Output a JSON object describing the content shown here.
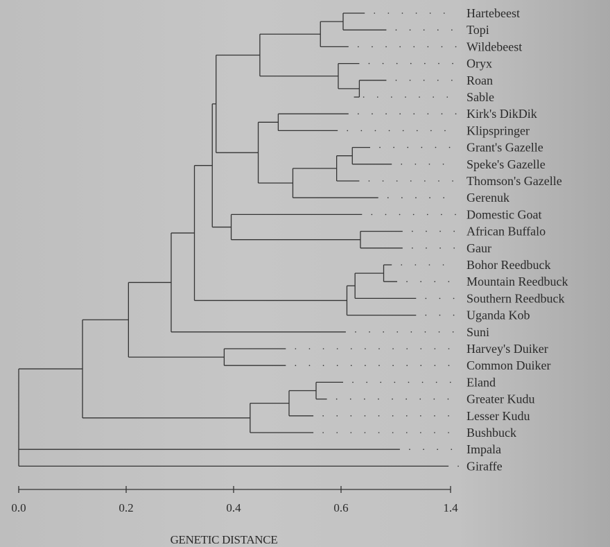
{
  "figure": {
    "axis_label": "GENETIC DISTANCE",
    "axis_ticks": [
      "0.0",
      "0.2",
      "0.4",
      "0.6",
      "1.4"
    ]
  },
  "taxa": [
    "Hartebeest",
    "Topi",
    "Wildebeest",
    "Oryx",
    "Roan",
    "Sable",
    "Kirk's DikDik",
    "Klipspringer",
    "Grant's Gazelle",
    "Speke's Gazelle",
    "Thomson's Gazelle",
    "Gerenuk",
    "Domestic Goat",
    "African Buffalo",
    "Gaur",
    "Bohor Reedbuck",
    "Mountain Reedbuck",
    "Southern Reedbuck",
    "Uganda Kob",
    "Suni",
    "Harvey's Duiker",
    "Common Duiker",
    "Eland",
    "Greater Kudu",
    "Lesser Kudu",
    "Bushbuck",
    "Impala",
    "Giraffe"
  ],
  "tree": {
    "children": [
      {
        "h": 0.118,
        "children": [
          {
            "h": 0.203,
            "children": [
              {
                "h": 0.282,
                "children": [
                  {
                    "h": 0.325,
                    "children": [
                      {
                        "h": 0.358,
                        "children": [
                          {
                            "h": 0.365,
                            "children": [
                              {
                                "h": 0.446,
                                "children": [
                                  {
                                    "h": 0.558,
                                    "children": [
                                      {
                                        "h": 0.6,
                                        "children": [
                                          {
                                            "leaf": "Hartebeest",
                                            "len": 0.64
                                          },
                                          {
                                            "leaf": "Topi",
                                            "len": 0.68
                                          }
                                        ]
                                      },
                                      {
                                        "leaf": "Wildebeest",
                                        "len": 0.61
                                      }
                                    ]
                                  },
                                  {
                                    "h": 0.591,
                                    "children": [
                                      {
                                        "leaf": "Oryx",
                                        "len": 0.63
                                      },
                                      {
                                        "h": 0.63,
                                        "children": [
                                          {
                                            "leaf": "Roan",
                                            "len": 0.68
                                          },
                                          {
                                            "leaf": "Sable",
                                            "len": 0.62
                                          }
                                        ]
                                      }
                                    ]
                                  }
                                ]
                              },
                              {
                                "h": 0.443,
                                "children": [
                                  {
                                    "h": 0.48,
                                    "children": [
                                      {
                                        "leaf": "Kirk's DikDik",
                                        "len": 0.61
                                      },
                                      {
                                        "leaf": "Klipspringer",
                                        "len": 0.59
                                      }
                                    ]
                                  },
                                  {
                                    "h": 0.507,
                                    "children": [
                                      {
                                        "h": 0.588,
                                        "children": [
                                          {
                                            "h": 0.617,
                                            "children": [
                                              {
                                                "leaf": "Grant's Gazelle",
                                                "len": 0.65
                                              },
                                              {
                                                "leaf": "Speke's Gazelle",
                                                "len": 0.69
                                              }
                                            ]
                                          },
                                          {
                                            "leaf": "Thomson's Gazelle",
                                            "len": 0.63
                                          }
                                        ]
                                      },
                                      {
                                        "leaf": "Gerenuk",
                                        "len": 0.665
                                      }
                                    ]
                                  }
                                ]
                              }
                            ]
                          },
                          {
                            "h": 0.393,
                            "children": [
                              {
                                "leaf": "Domestic Goat",
                                "len": 0.635
                              },
                              {
                                "h": 0.632,
                                "children": [
                                  {
                                    "leaf": "African Buffalo",
                                    "len": 0.71
                                  },
                                  {
                                    "leaf": "Gaur",
                                    "len": 0.71
                                  }
                                ]
                              }
                            ]
                          }
                        ]
                      },
                      {
                        "h": 0.607,
                        "children": [
                          {
                            "h": 0.622,
                            "children": [
                              {
                                "h": 0.675,
                                "children": [
                                  {
                                    "leaf": "Bohor Reedbuck",
                                    "len": 0.69
                                  },
                                  {
                                    "leaf": "Mountain Reedbuck",
                                    "len": 0.7
                                  }
                                ]
                              },
                              {
                                "leaf": "Southern Reedbuck",
                                "len": 0.735
                              }
                            ]
                          },
                          {
                            "leaf": "Uganda Kob",
                            "len": 0.735
                          }
                        ]
                      }
                    ]
                  },
                  {
                    "leaf": "Suni",
                    "len": 0.605
                  }
                ]
              },
              {
                "h": 0.38,
                "children": [
                  {
                    "leaf": "Harvey's Duiker",
                    "len": 0.494
                  },
                  {
                    "leaf": "Common Duiker",
                    "len": 0.494
                  }
                ]
              }
            ]
          },
          {
            "h": 0.428,
            "children": [
              {
                "h": 0.5,
                "children": [
                  {
                    "h": 0.55,
                    "children": [
                      {
                        "leaf": "Eland",
                        "len": 0.6
                      },
                      {
                        "leaf": "Greater Kudu",
                        "len": 0.57
                      }
                    ]
                  },
                  {
                    "leaf": "Lesser Kudu",
                    "len": 0.545
                  }
                ]
              },
              {
                "leaf": "Bushbuck",
                "len": 0.545
              }
            ]
          }
        ]
      },
      {
        "leaf": "Impala",
        "len": 0.705
      },
      {
        "leaf": "Giraffe",
        "len": 0.795
      }
    ]
  }
}
